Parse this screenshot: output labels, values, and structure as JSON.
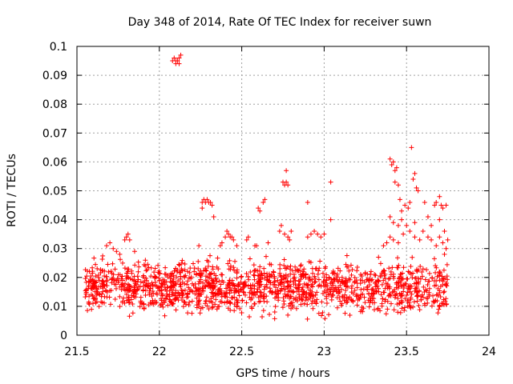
{
  "chart_data": {
    "type": "scatter",
    "title": "Day 348 of 2014, Rate Of TEC Index for receiver suwn",
    "xlabel": "GPS time / hours",
    "ylabel": "ROTI / TECUs",
    "xlim": [
      21.5,
      24
    ],
    "ylim": [
      0,
      0.1
    ],
    "xticks": [
      21.5,
      22,
      22.5,
      23,
      23.5,
      24
    ],
    "xtick_labels": [
      "21.5",
      "22",
      "22.5",
      "23",
      "23.5",
      "24"
    ],
    "yticks": [
      0,
      0.01,
      0.02,
      0.03,
      0.04,
      0.05,
      0.06,
      0.07,
      0.08,
      0.09,
      0.1
    ],
    "ytick_labels": [
      "0",
      "0.01",
      "0.02",
      "0.03",
      "0.04",
      "0.05",
      "0.06",
      "0.07",
      "0.08",
      "0.09",
      "0.1"
    ],
    "grid": true,
    "marker": "+",
    "color": "#ff0000",
    "series": [
      {
        "name": "ROTI",
        "points": [
          [
            22.08,
            0.095
          ],
          [
            22.09,
            0.096
          ],
          [
            22.1,
            0.094
          ],
          [
            22.11,
            0.095
          ],
          [
            22.12,
            0.096
          ],
          [
            22.13,
            0.097
          ],
          [
            22.1,
            0.095
          ],
          [
            22.12,
            0.094
          ],
          [
            22.26,
            0.046
          ],
          [
            22.27,
            0.047
          ],
          [
            22.28,
            0.046
          ],
          [
            22.29,
            0.047
          ],
          [
            22.3,
            0.046
          ],
          [
            22.31,
            0.046
          ],
          [
            22.32,
            0.045
          ],
          [
            22.33,
            0.041
          ],
          [
            22.26,
            0.044
          ],
          [
            22.6,
            0.044
          ],
          [
            22.61,
            0.043
          ],
          [
            22.63,
            0.046
          ],
          [
            22.64,
            0.047
          ],
          [
            22.75,
            0.053
          ],
          [
            22.76,
            0.052
          ],
          [
            22.77,
            0.053
          ],
          [
            22.78,
            0.052
          ],
          [
            22.77,
            0.057
          ],
          [
            22.9,
            0.046
          ],
          [
            23.04,
            0.053
          ],
          [
            23.04,
            0.04
          ],
          [
            23.4,
            0.061
          ],
          [
            23.41,
            0.059
          ],
          [
            23.42,
            0.06
          ],
          [
            23.43,
            0.057
          ],
          [
            23.44,
            0.058
          ],
          [
            23.45,
            0.052
          ],
          [
            23.46,
            0.047
          ],
          [
            23.43,
            0.053
          ],
          [
            23.53,
            0.065
          ],
          [
            23.54,
            0.054
          ],
          [
            23.55,
            0.056
          ],
          [
            23.56,
            0.051
          ],
          [
            23.57,
            0.05
          ],
          [
            23.67,
            0.045
          ],
          [
            23.68,
            0.046
          ],
          [
            23.7,
            0.048
          ],
          [
            23.71,
            0.045
          ],
          [
            23.72,
            0.044
          ],
          [
            23.74,
            0.045
          ],
          [
            23.47,
            0.043
          ],
          [
            23.49,
            0.045
          ],
          [
            23.51,
            0.044
          ],
          [
            23.52,
            0.046
          ],
          [
            23.61,
            0.046
          ],
          [
            23.63,
            0.041
          ],
          [
            21.68,
            0.031
          ],
          [
            21.7,
            0.032
          ],
          [
            21.72,
            0.03
          ],
          [
            21.74,
            0.029
          ],
          [
            21.76,
            0.028
          ],
          [
            21.79,
            0.033
          ],
          [
            21.8,
            0.034
          ],
          [
            21.81,
            0.035
          ],
          [
            21.82,
            0.033
          ],
          [
            21.85,
            0.029
          ],
          [
            22.24,
            0.031
          ],
          [
            22.37,
            0.031
          ],
          [
            22.38,
            0.032
          ],
          [
            22.4,
            0.034
          ],
          [
            22.41,
            0.036
          ],
          [
            22.42,
            0.035
          ],
          [
            22.43,
            0.034
          ],
          [
            22.44,
            0.034
          ],
          [
            22.45,
            0.033
          ],
          [
            22.47,
            0.031
          ],
          [
            22.53,
            0.033
          ],
          [
            22.54,
            0.034
          ],
          [
            22.58,
            0.031
          ],
          [
            22.59,
            0.031
          ],
          [
            22.66,
            0.032
          ],
          [
            22.73,
            0.036
          ],
          [
            22.74,
            0.038
          ],
          [
            22.76,
            0.035
          ],
          [
            22.78,
            0.034
          ],
          [
            22.79,
            0.033
          ],
          [
            22.8,
            0.036
          ],
          [
            22.9,
            0.034
          ],
          [
            22.92,
            0.035
          ],
          [
            22.94,
            0.036
          ],
          [
            22.96,
            0.035
          ],
          [
            22.98,
            0.034
          ],
          [
            23.0,
            0.035
          ],
          [
            23.33,
            0.027
          ],
          [
            23.36,
            0.031
          ],
          [
            23.38,
            0.032
          ],
          [
            23.4,
            0.034
          ],
          [
            23.42,
            0.033
          ],
          [
            23.45,
            0.032
          ],
          [
            23.48,
            0.035
          ],
          [
            23.5,
            0.038
          ],
          [
            23.52,
            0.036
          ],
          [
            23.55,
            0.034
          ],
          [
            23.58,
            0.033
          ],
          [
            23.6,
            0.036
          ],
          [
            23.63,
            0.034
          ],
          [
            23.65,
            0.033
          ],
          [
            23.68,
            0.031
          ],
          [
            23.7,
            0.034
          ],
          [
            23.72,
            0.032
          ],
          [
            23.74,
            0.03
          ],
          [
            23.75,
            0.033
          ],
          [
            23.73,
            0.028
          ],
          [
            23.4,
            0.041
          ],
          [
            23.42,
            0.039
          ],
          [
            23.45,
            0.038
          ],
          [
            23.47,
            0.04
          ],
          [
            23.55,
            0.039
          ],
          [
            23.65,
            0.038
          ],
          [
            23.7,
            0.04
          ],
          [
            23.73,
            0.036
          ]
        ],
        "band": {
          "x_range": [
            21.55,
            23.75
          ],
          "y_range": [
            0.004,
            0.028
          ],
          "count": 1500,
          "typical": 0.014
        }
      }
    ]
  }
}
